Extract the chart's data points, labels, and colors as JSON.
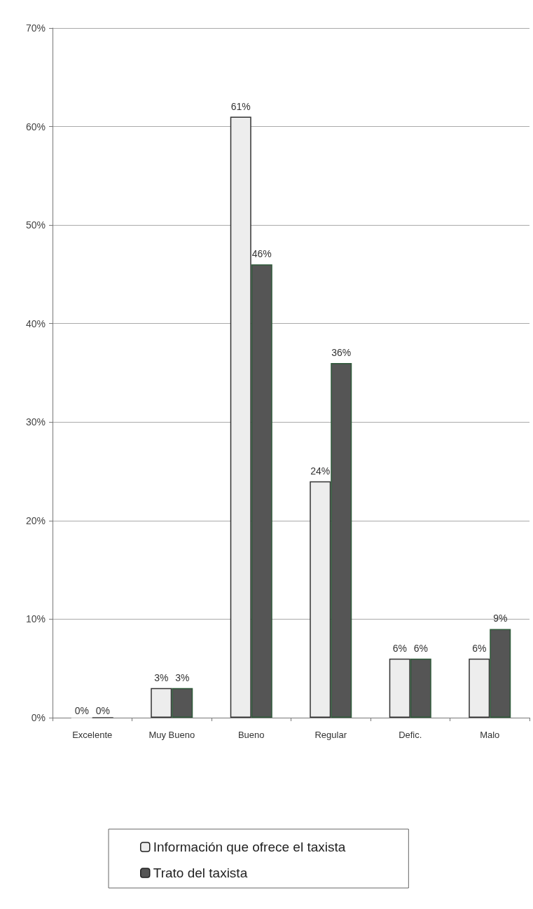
{
  "chart_data": {
    "type": "bar",
    "categories": [
      "Excelente",
      "Muy Bueno",
      "Bueno",
      "Regular",
      "Defic.",
      "Malo"
    ],
    "series": [
      {
        "name": "Información que ofrece el taxista",
        "color": "#ededed",
        "values": [
          0,
          3,
          61,
          24,
          6,
          6
        ],
        "value_labels": [
          "0%",
          "3%",
          "61%",
          "24%",
          "6%",
          "6%"
        ]
      },
      {
        "name": "Trato del taxista",
        "color": "#555555",
        "values": [
          0,
          3,
          46,
          36,
          6,
          9
        ],
        "value_labels": [
          "0%",
          "3%",
          "46%",
          "36%",
          "6%",
          "9%"
        ]
      }
    ],
    "ylim": [
      0,
      70
    ],
    "yticks": [
      {
        "value": 0,
        "label": "0%"
      },
      {
        "value": 10,
        "label": "10%"
      },
      {
        "value": 20,
        "label": "20%"
      },
      {
        "value": 30,
        "label": "30%"
      },
      {
        "value": 40,
        "label": "40%"
      },
      {
        "value": 50,
        "label": "50%"
      },
      {
        "value": 60,
        "label": "60%"
      },
      {
        "value": 70,
        "label": "70%"
      }
    ],
    "grid": "y",
    "legend": "bottom"
  }
}
